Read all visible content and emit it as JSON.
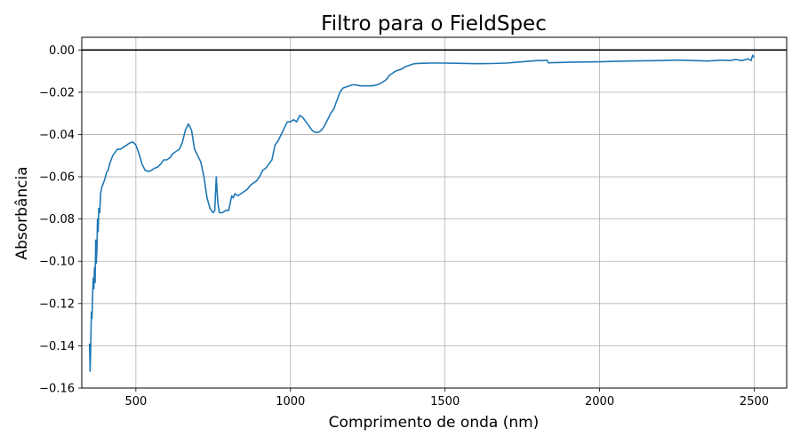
{
  "chart_data": {
    "type": "line",
    "title": "Filtro para o FieldSpec",
    "xlabel": "Comprimento de onda (nm)",
    "ylabel": "Absorbância",
    "xlim": [
      325,
      2605
    ],
    "ylim": [
      -0.16,
      0.006
    ],
    "x_ticks": [
      500,
      1000,
      1500,
      2000,
      2500
    ],
    "x_tick_labels": [
      "500",
      "1000",
      "1500",
      "2000",
      "2500"
    ],
    "y_ticks": [
      0.0,
      -0.02,
      -0.04,
      -0.06,
      -0.08,
      -0.1,
      -0.12,
      -0.14,
      -0.16
    ],
    "y_tick_labels": [
      "0.00",
      "−0.02",
      "−0.04",
      "−0.06",
      "−0.08",
      "−0.10",
      "−0.12",
      "−0.14",
      "−0.16"
    ],
    "grid": true,
    "reference_line": {
      "y": 0.0,
      "color": "#000000"
    },
    "series": [
      {
        "color": "#1f77b4",
        "x": [
          350,
          352,
          354,
          356,
          358,
          360,
          362,
          364,
          366,
          368,
          370,
          372,
          374,
          376,
          378,
          380,
          383,
          386,
          390,
          395,
          400,
          405,
          410,
          415,
          420,
          425,
          430,
          440,
          450,
          460,
          470,
          480,
          490,
          500,
          510,
          520,
          530,
          540,
          550,
          560,
          570,
          580,
          590,
          600,
          610,
          620,
          630,
          640,
          650,
          660,
          670,
          680,
          690,
          700,
          710,
          720,
          730,
          740,
          750,
          755,
          760,
          765,
          770,
          780,
          790,
          800,
          810,
          815,
          820,
          830,
          840,
          850,
          860,
          870,
          880,
          890,
          900,
          910,
          920,
          930,
          940,
          950,
          960,
          970,
          980,
          990,
          1000,
          1010,
          1020,
          1030,
          1040,
          1050,
          1060,
          1070,
          1080,
          1090,
          1100,
          1110,
          1120,
          1130,
          1140,
          1150,
          1160,
          1170,
          1180,
          1190,
          1200,
          1210,
          1220,
          1230,
          1240,
          1250,
          1260,
          1270,
          1280,
          1290,
          1300,
          1310,
          1320,
          1330,
          1340,
          1350,
          1360,
          1370,
          1380,
          1390,
          1400,
          1420,
          1450,
          1500,
          1550,
          1600,
          1650,
          1700,
          1750,
          1800,
          1820,
          1830,
          1835,
          1840,
          1850,
          1900,
          1950,
          2000,
          2050,
          2100,
          2150,
          2200,
          2250,
          2300,
          2350,
          2400,
          2420,
          2440,
          2460,
          2480,
          2490,
          2495,
          2500
        ],
        "y": [
          -0.139,
          -0.152,
          -0.14,
          -0.124,
          -0.127,
          -0.116,
          -0.108,
          -0.113,
          -0.103,
          -0.11,
          -0.09,
          -0.101,
          -0.095,
          -0.08,
          -0.086,
          -0.075,
          -0.077,
          -0.068,
          -0.065,
          -0.063,
          -0.061,
          -0.058,
          -0.057,
          -0.054,
          -0.052,
          -0.05,
          -0.049,
          -0.047,
          -0.047,
          -0.046,
          -0.045,
          -0.044,
          -0.0435,
          -0.045,
          -0.049,
          -0.054,
          -0.057,
          -0.0575,
          -0.057,
          -0.056,
          -0.0555,
          -0.054,
          -0.052,
          -0.052,
          -0.051,
          -0.049,
          -0.048,
          -0.047,
          -0.044,
          -0.038,
          -0.035,
          -0.038,
          -0.047,
          -0.05,
          -0.053,
          -0.06,
          -0.07,
          -0.075,
          -0.077,
          -0.076,
          -0.06,
          -0.072,
          -0.077,
          -0.077,
          -0.076,
          -0.076,
          -0.069,
          -0.07,
          -0.068,
          -0.069,
          -0.068,
          -0.067,
          -0.066,
          -0.064,
          -0.063,
          -0.062,
          -0.06,
          -0.057,
          -0.056,
          -0.054,
          -0.052,
          -0.045,
          -0.043,
          -0.04,
          -0.037,
          -0.034,
          -0.034,
          -0.033,
          -0.034,
          -0.031,
          -0.032,
          -0.034,
          -0.036,
          -0.038,
          -0.039,
          -0.039,
          -0.038,
          -0.036,
          -0.033,
          -0.03,
          -0.028,
          -0.024,
          -0.02,
          -0.018,
          -0.0175,
          -0.017,
          -0.0165,
          -0.0165,
          -0.0168,
          -0.017,
          -0.017,
          -0.017,
          -0.017,
          -0.0168,
          -0.0165,
          -0.016,
          -0.015,
          -0.014,
          -0.012,
          -0.011,
          -0.01,
          -0.0095,
          -0.009,
          -0.008,
          -0.0075,
          -0.007,
          -0.0065,
          -0.0063,
          -0.0062,
          -0.0062,
          -0.0063,
          -0.0065,
          -0.0064,
          -0.0062,
          -0.0056,
          -0.005,
          -0.005,
          -0.0049,
          -0.0062,
          -0.006,
          -0.006,
          -0.0058,
          -0.0057,
          -0.0056,
          -0.0054,
          -0.0052,
          -0.0051,
          -0.005,
          -0.0048,
          -0.005,
          -0.0052,
          -0.0048,
          -0.005,
          -0.0045,
          -0.005,
          -0.0042,
          -0.005,
          -0.0025,
          -0.0035
        ]
      }
    ]
  }
}
